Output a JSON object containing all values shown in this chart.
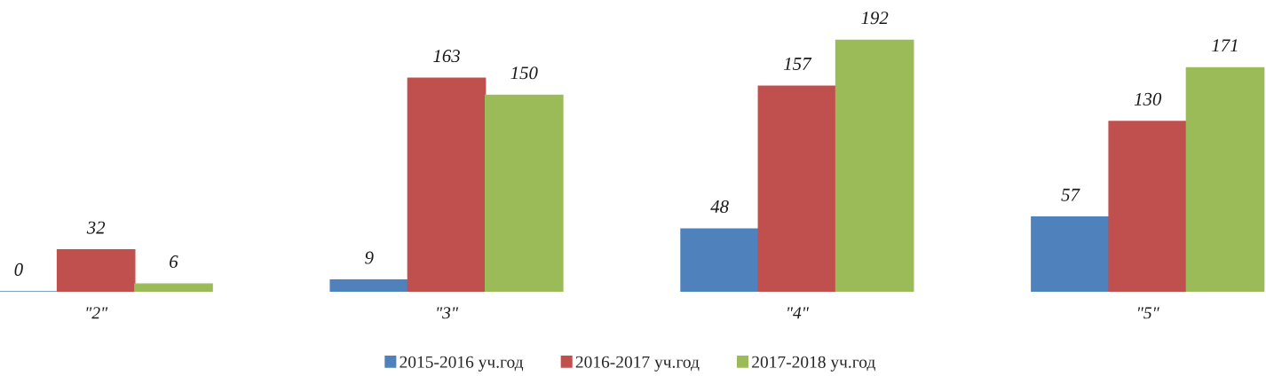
{
  "chart_data": {
    "type": "bar",
    "categories": [
      "\"2\"",
      "\"3\"",
      "\"4\"",
      "\"5\""
    ],
    "series": [
      {
        "name": "2015-2016 уч.год",
        "color": "#4f81bd",
        "values": [
          0,
          9,
          48,
          57
        ]
      },
      {
        "name": "2016-2017 уч.год",
        "color": "#c0504d",
        "values": [
          32,
          163,
          157,
          130
        ]
      },
      {
        "name": "2017-2018 уч.год",
        "color": "#9bbb59",
        "values": [
          6,
          150,
          192,
          171
        ]
      }
    ],
    "data_labels": true,
    "legend": "bottom",
    "grid": false,
    "tick_labels": "x"
  }
}
